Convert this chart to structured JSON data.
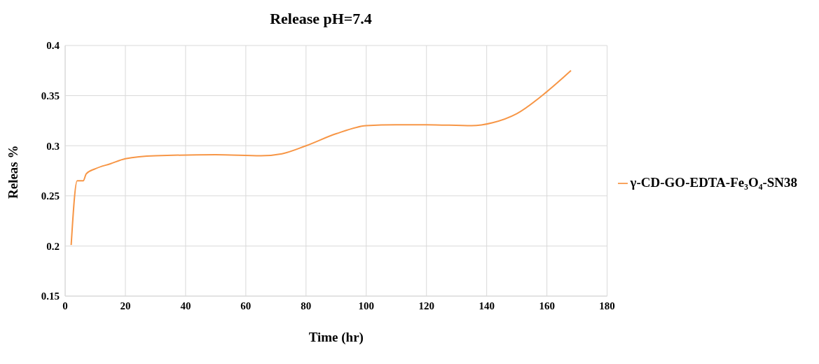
{
  "chart_data": {
    "type": "line",
    "title": "Release pH=7.4",
    "xlabel": "Time (hr)",
    "ylabel": "Releas %",
    "x": [
      2,
      4,
      6,
      7,
      10,
      15,
      20,
      30,
      50,
      65,
      72,
      80,
      90,
      100,
      110,
      120,
      135,
      142,
      150,
      160,
      168
    ],
    "series": [
      {
        "name": "γ-CD-GO-EDTA-Fe₃O₄-SN38",
        "color": "#f79646",
        "values": [
          0.201,
          0.265,
          0.265,
          0.272,
          0.277,
          0.282,
          0.287,
          0.29,
          0.291,
          0.29,
          0.292,
          0.3,
          0.312,
          0.32,
          0.321,
          0.321,
          0.32,
          0.323,
          0.332,
          0.354,
          0.375
        ]
      }
    ],
    "xlim": [
      0,
      180
    ],
    "xticks": [
      0,
      20,
      40,
      60,
      80,
      100,
      120,
      140,
      160,
      180
    ],
    "ylim": [
      0.15,
      0.4
    ],
    "yticks": [
      0.15,
      0.2,
      0.25,
      0.3,
      0.35,
      0.4
    ],
    "grid": true,
    "legend": "right",
    "marker": "none",
    "line_style": "solid"
  }
}
